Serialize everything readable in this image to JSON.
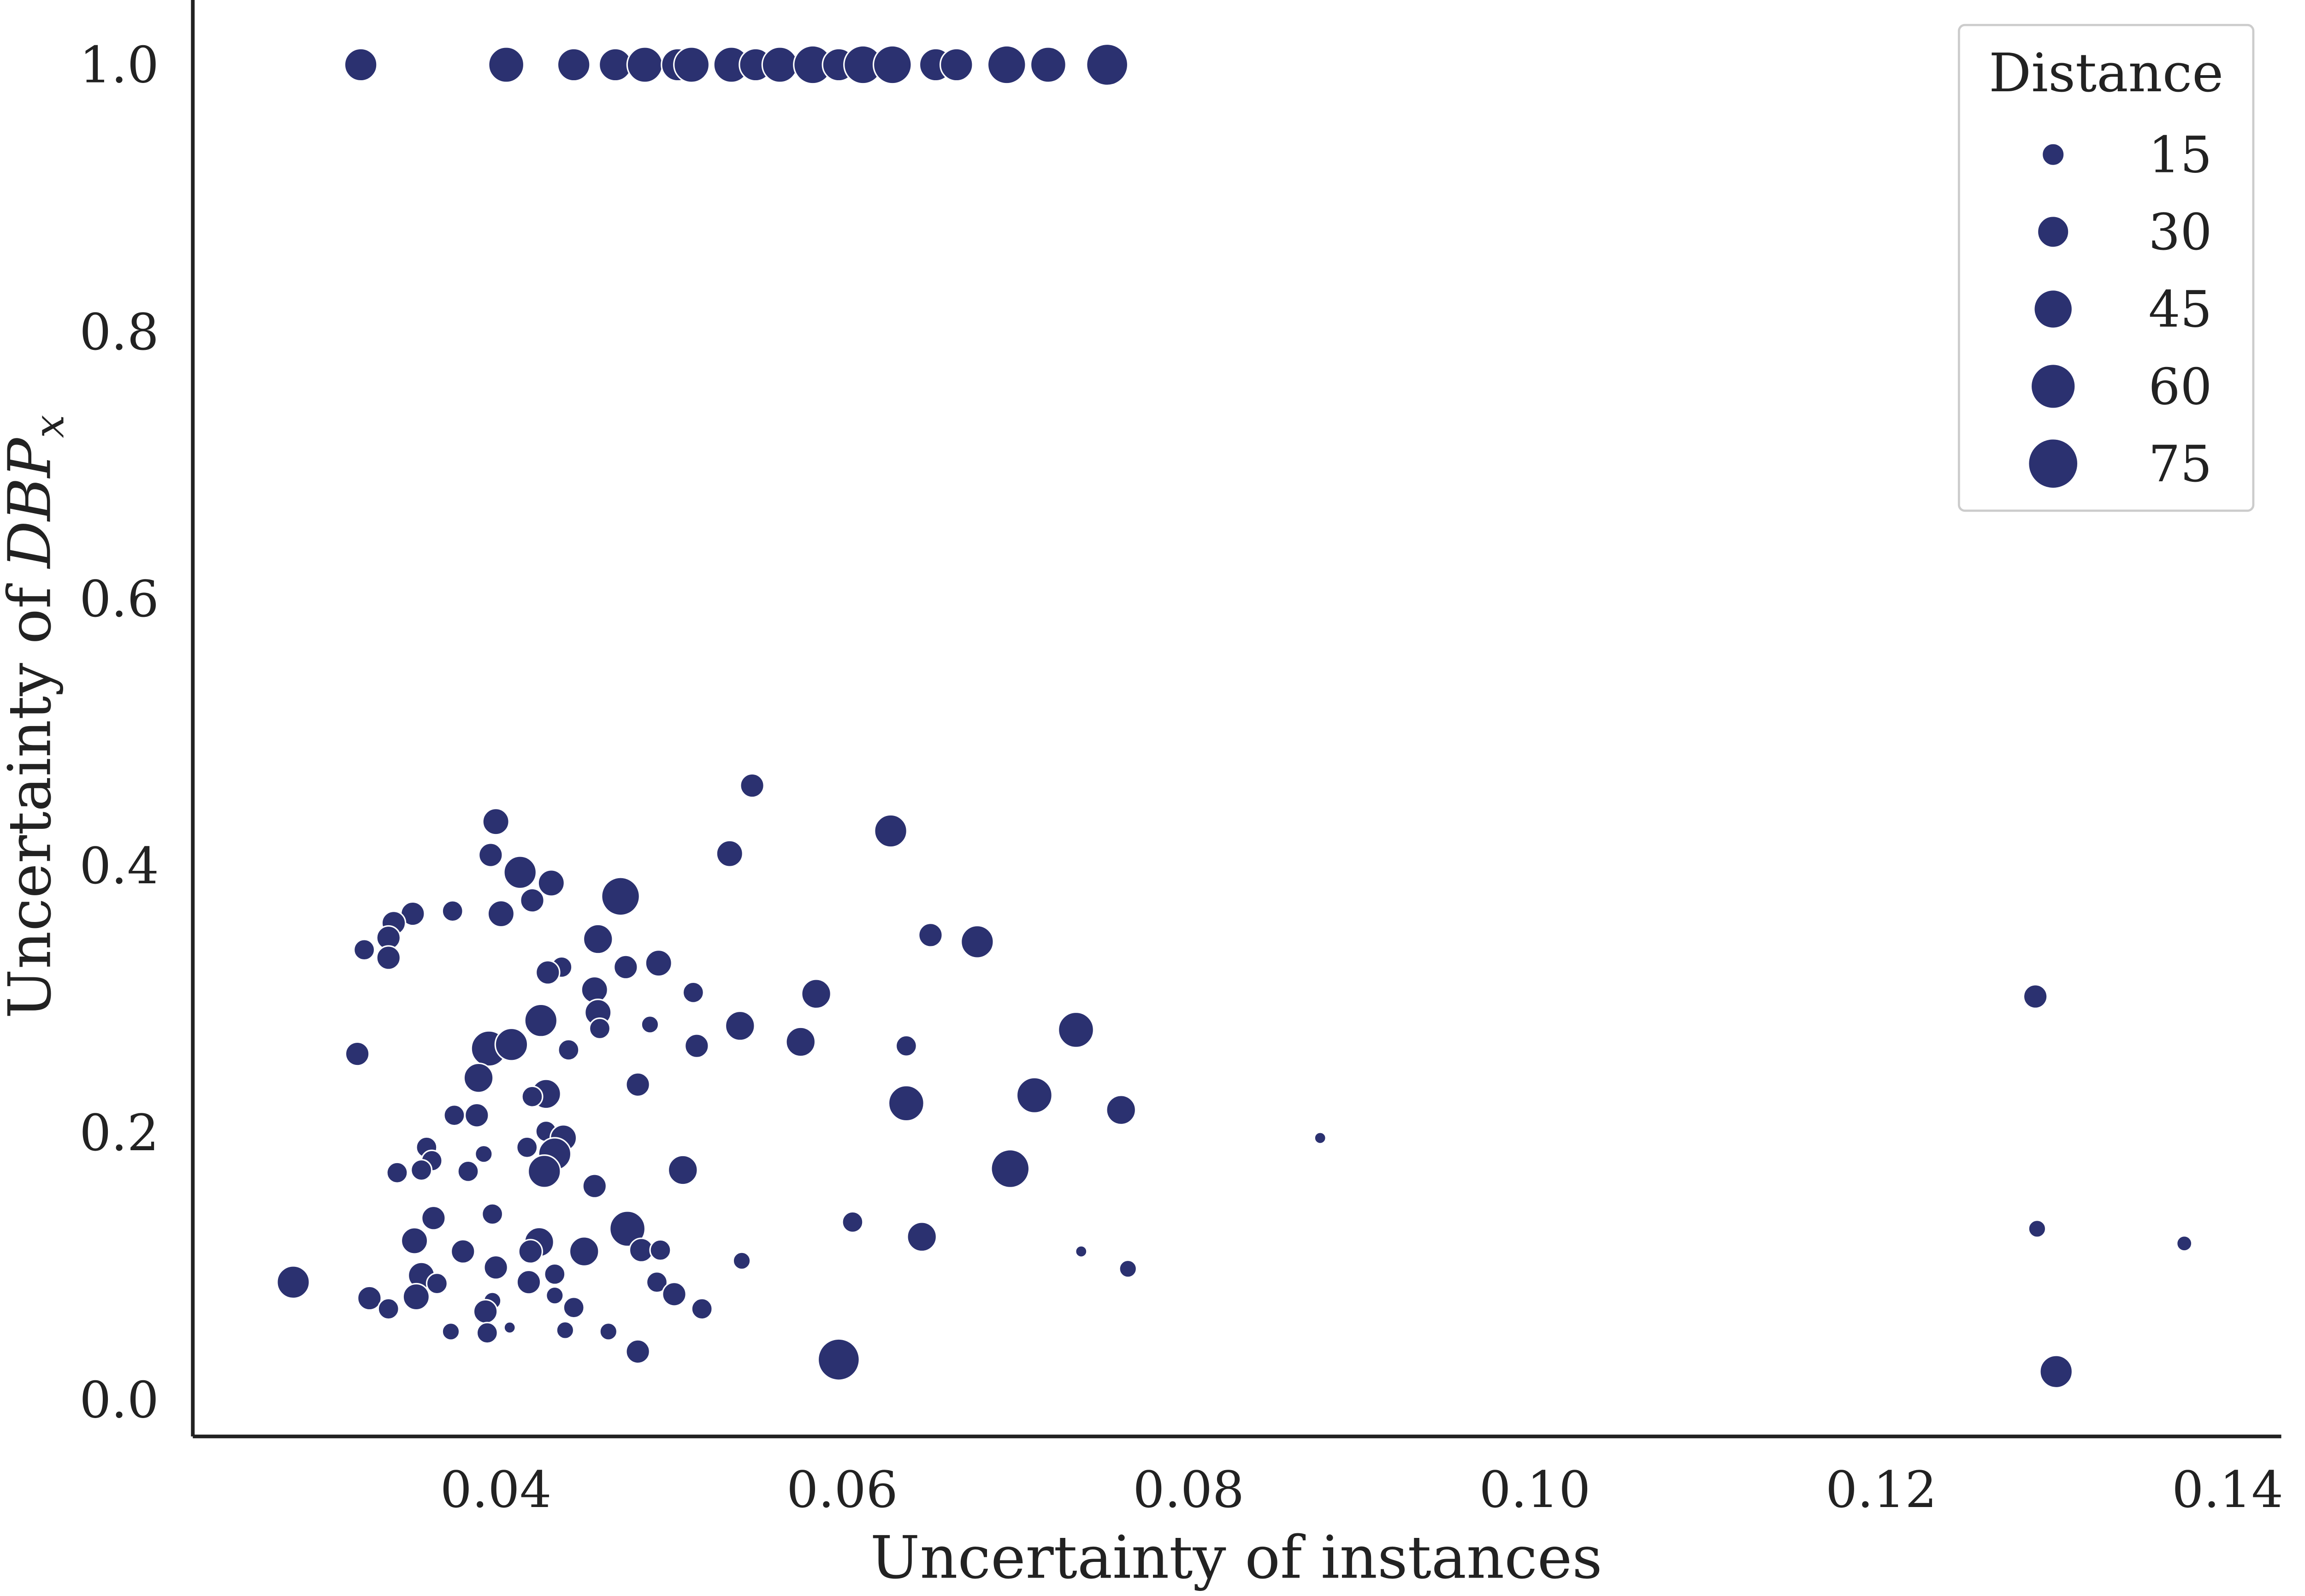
{
  "chart_data": {
    "type": "scatter",
    "xlabel": "Uncertainty of instances",
    "ylabel": [
      "Uncertainty of ",
      "DBP",
      "x"
    ],
    "color": "#2b3170",
    "xlim": [
      0.0225,
      0.1431
    ],
    "ylim": [
      -0.0276,
      1.0485
    ],
    "xticks": [
      0.04,
      0.06,
      0.08,
      {
        "value": 0.1,
        "label": "0.10"
      },
      0.12,
      0.14
    ],
    "yticks": [
      {
        "value": 0,
        "label": "0.0"
      },
      0.2,
      0.4,
      0.6,
      0.8,
      {
        "value": 1,
        "label": "1.0"
      }
    ],
    "size_legend": {
      "title": "Distance",
      "values": [
        15,
        30,
        45,
        60,
        75
      ]
    },
    "x": [
      0.0322,
      0.0406,
      0.0445,
      0.0469,
      0.0486,
      0.0505,
      0.0513,
      0.0536,
      0.055,
      0.0564,
      0.0583,
      0.0598,
      0.0612,
      0.0629,
      0.0654,
      0.0666,
      0.0695,
      0.0719,
      0.0753,
      0.0548,
      0.0628,
      0.04,
      0.0397,
      0.0414,
      0.0432,
      0.0472,
      0.0535,
      0.0421,
      0.0403,
      0.0375,
      0.0352,
      0.0341,
      0.0338,
      0.0324,
      0.0338,
      0.0651,
      0.0678,
      0.0459,
      0.0494,
      0.0475,
      0.0438,
      0.043,
      0.0457,
      0.0514,
      0.0585,
      0.1289,
      0.0459,
      0.0489,
      0.0426,
      0.0541,
      0.046,
      0.0735,
      0.0396,
      0.0409,
      0.0442,
      0.0516,
      0.0576,
      0.0637,
      0.032,
      0.039,
      0.0482,
      0.0429,
      0.0421,
      0.0711,
      0.0637,
      0.0761,
      0.0376,
      0.0389,
      0.0429,
      0.0439,
      0.0876,
      0.0418,
      0.036,
      0.0393,
      0.0434,
      0.0428,
      0.0363,
      0.0357,
      0.0343,
      0.0384,
      0.0508,
      0.0697,
      0.0457,
      0.0398,
      0.0364,
      0.0606,
      0.129,
      0.0476,
      0.0646,
      0.0353,
      0.0425,
      0.1375,
      0.0484,
      0.0495,
      0.042,
      0.0381,
      0.0451,
      0.0738,
      0.0542,
      0.04,
      0.0765,
      0.0434,
      0.0357,
      0.0283,
      0.0366,
      0.0493,
      0.0419,
      0.0503,
      0.0327,
      0.0354,
      0.0434,
      0.0445,
      0.0519,
      0.0398,
      0.0338,
      0.0394,
      0.0374,
      0.0395,
      0.044,
      0.0465,
      0.0408,
      0.0482,
      0.0598,
      0.1301
    ],
    "values": [
      1,
      1,
      1,
      1,
      1,
      1,
      1,
      1,
      1,
      1,
      1,
      1,
      1,
      1,
      1,
      1,
      1,
      1,
      1,
      0.46,
      0.426,
      0.433,
      0.408,
      0.395,
      0.387,
      0.377,
      0.409,
      0.374,
      0.364,
      0.366,
      0.364,
      0.357,
      0.346,
      0.337,
      0.331,
      0.348,
      0.343,
      0.345,
      0.327,
      0.324,
      0.324,
      0.32,
      0.307,
      0.305,
      0.304,
      0.302,
      0.29,
      0.281,
      0.284,
      0.28,
      0.278,
      0.277,
      0.263,
      0.266,
      0.262,
      0.265,
      0.268,
      0.265,
      0.259,
      0.241,
      0.236,
      0.229,
      0.227,
      0.228,
      0.222,
      0.217,
      0.213,
      0.213,
      0.201,
      0.196,
      0.196,
      0.189,
      0.189,
      0.184,
      0.184,
      0.171,
      0.179,
      0.172,
      0.17,
      0.171,
      0.172,
      0.173,
      0.16,
      0.139,
      0.136,
      0.133,
      0.128,
      0.128,
      0.122,
      0.119,
      0.118,
      0.117,
      0.112,
      0.112,
      0.111,
      0.111,
      0.111,
      0.111,
      0.104,
      0.099,
      0.098,
      0.094,
      0.093,
      0.088,
      0.087,
      0.088,
      0.088,
      0.079,
      0.076,
      0.077,
      0.078,
      0.069,
      0.068,
      0.074,
      0.068,
      0.066,
      0.051,
      0.05,
      0.052,
      0.051,
      0.054,
      0.036,
      0.03,
      0.021
    ],
    "sizes": [
      32,
      38,
      32,
      32,
      38,
      32,
      38,
      38,
      32,
      38,
      44,
      32,
      44,
      44,
      32,
      32,
      44,
      38,
      52,
      17,
      32,
      21,
      17,
      32,
      21,
      44,
      21,
      17,
      21,
      13,
      17,
      17,
      17,
      13,
      17,
      17,
      32,
      26,
      21,
      17,
      13,
      17,
      21,
      13,
      26,
      17,
      21,
      9,
      32,
      26,
      13,
      38,
      38,
      32,
      13,
      17,
      26,
      13,
      17,
      26,
      17,
      26,
      13,
      38,
      38,
      26,
      13,
      17,
      13,
      21,
      4,
      13,
      13,
      9,
      32,
      32,
      13,
      13,
      13,
      13,
      26,
      44,
      17,
      13,
      17,
      13,
      9,
      38,
      26,
      21,
      26,
      7,
      17,
      13,
      17,
      17,
      26,
      4,
      9,
      17,
      9,
      13,
      21,
      32,
      13,
      13,
      17,
      17,
      17,
      21,
      9,
      13,
      13,
      9,
      13,
      17,
      9,
      13,
      9,
      9,
      4,
      17,
      52,
      32
    ]
  }
}
